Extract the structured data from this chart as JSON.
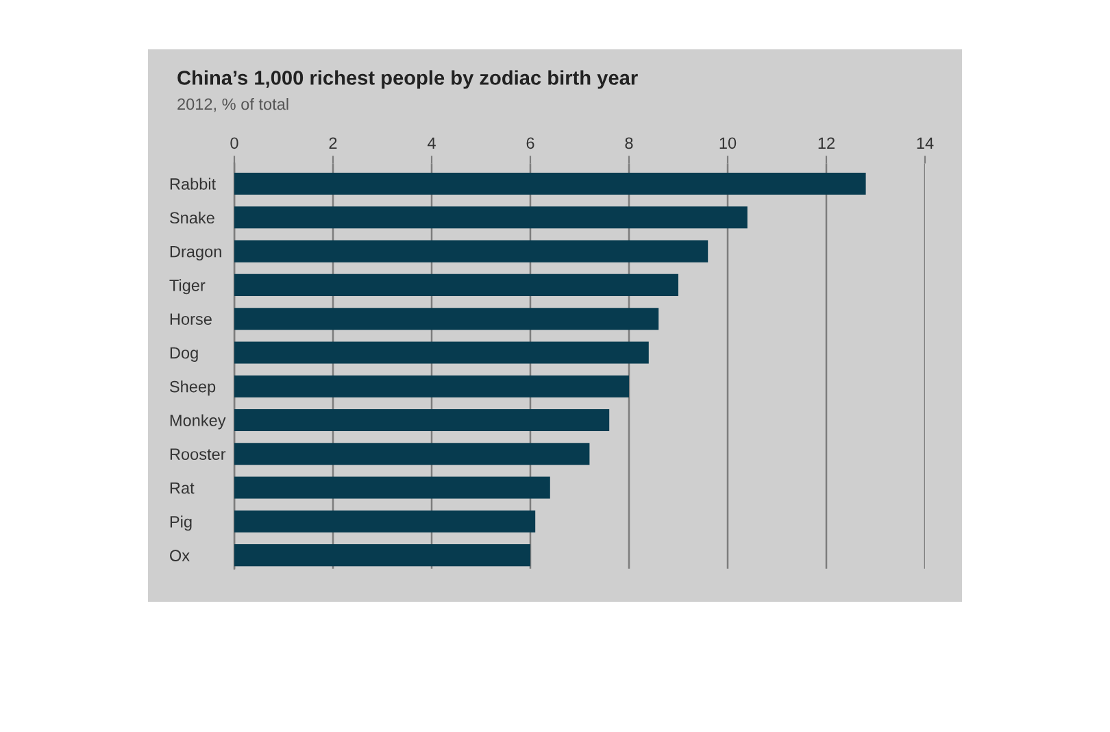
{
  "chart_data": {
    "type": "bar",
    "orientation": "horizontal",
    "title": "China’s 1,000 richest people by zodiac birth year",
    "subtitle": "2012, % of total",
    "categories": [
      "Rabbit",
      "Snake",
      "Dragon",
      "Tiger",
      "Horse",
      "Dog",
      "Sheep",
      "Monkey",
      "Rooster",
      "Rat",
      "Pig",
      "Ox"
    ],
    "values": [
      12.8,
      10.4,
      9.6,
      9.0,
      8.6,
      8.4,
      8.0,
      7.6,
      7.2,
      6.4,
      6.1,
      6.0
    ],
    "color": "#073b4f",
    "xlim": [
      0,
      14
    ],
    "xticks": [
      0,
      2,
      4,
      6,
      8,
      10,
      12,
      14
    ],
    "grid": "x"
  }
}
